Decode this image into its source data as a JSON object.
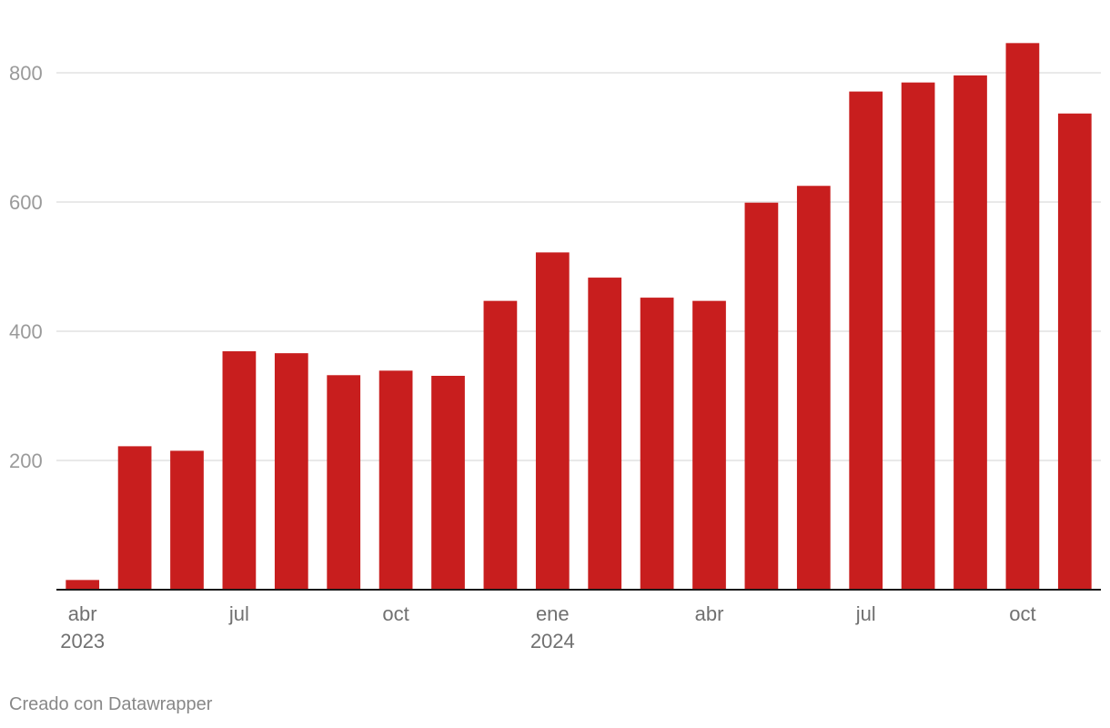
{
  "chart_data": {
    "type": "bar",
    "categories": [
      "2023-04",
      "2023-05",
      "2023-06",
      "2023-07",
      "2023-08",
      "2023-09",
      "2023-10",
      "2023-11",
      "2023-12",
      "2024-01",
      "2024-02",
      "2024-03",
      "2024-04",
      "2024-05",
      "2024-06",
      "2024-07",
      "2024-08",
      "2024-09",
      "2024-10",
      "2024-11"
    ],
    "values": [
      15,
      222,
      215,
      369,
      366,
      332,
      339,
      331,
      447,
      522,
      483,
      452,
      447,
      599,
      625,
      771,
      785,
      796,
      846,
      737
    ],
    "title": "",
    "xlabel": "",
    "ylabel": "",
    "ylim": [
      0,
      870
    ],
    "yticks": [
      200,
      400,
      600,
      800
    ],
    "xtick_labels": [
      {
        "category": "2023-04",
        "label": "abr",
        "year": "2023"
      },
      {
        "category": "2023-07",
        "label": "jul",
        "year": ""
      },
      {
        "category": "2023-10",
        "label": "oct",
        "year": ""
      },
      {
        "category": "2024-01",
        "label": "ene",
        "year": "2024"
      },
      {
        "category": "2024-04",
        "label": "abr",
        "year": ""
      },
      {
        "category": "2024-07",
        "label": "jul",
        "year": ""
      },
      {
        "category": "2024-10",
        "label": "oct",
        "year": ""
      }
    ],
    "grid": true,
    "bar_color": "#c81e1e"
  },
  "footer": {
    "credit": "Creado con Datawrapper"
  }
}
